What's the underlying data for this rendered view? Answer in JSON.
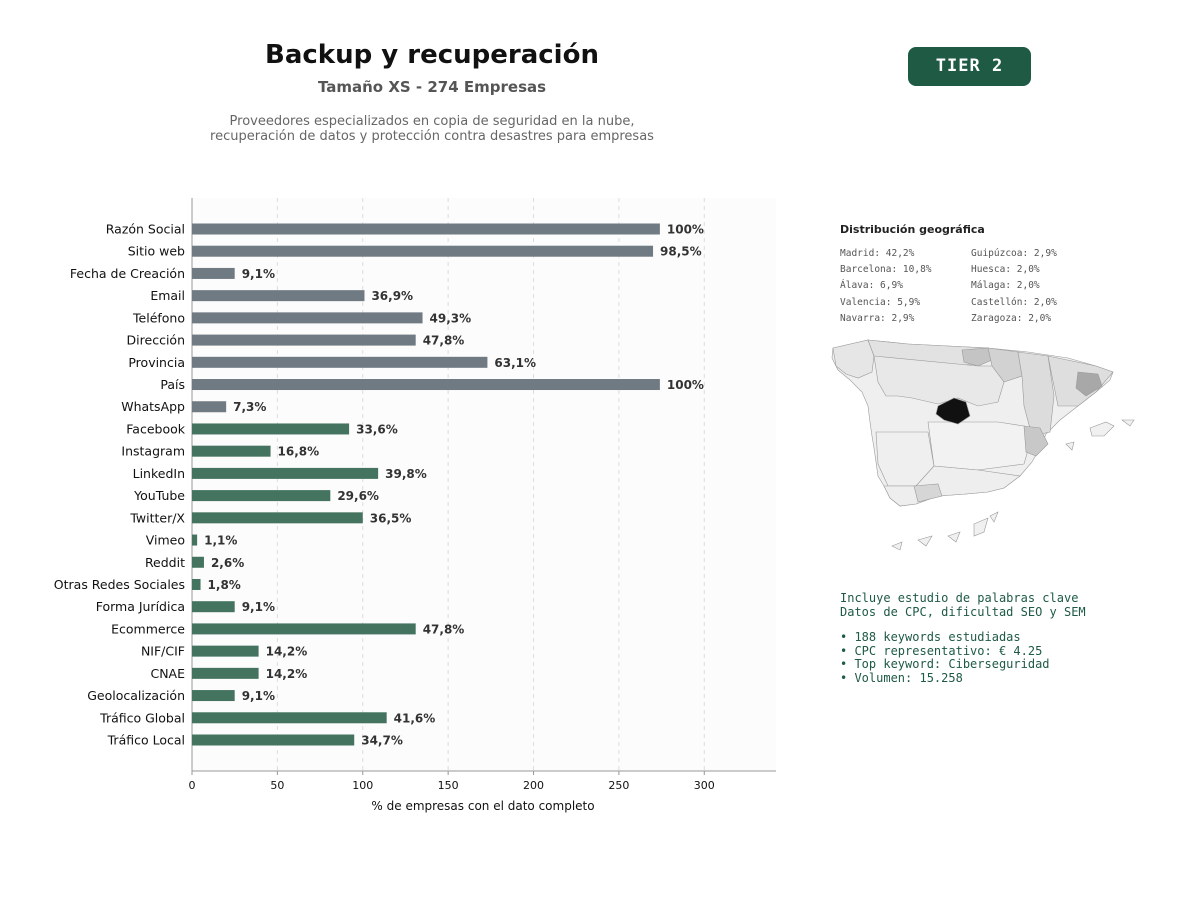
{
  "header": {
    "title": "Backup y recuperación",
    "subtitle": "Tamaño XS - 274 Empresas",
    "description_line1": "Proveedores especializados en copia de seguridad en la nube,",
    "description_line2": "recuperación de datos y protección contra desastres para empresas",
    "tier": "TIER 2"
  },
  "colors": {
    "gray_bar": "#707a82",
    "green_bar": "#44735f",
    "accent": "#1e5a44"
  },
  "chart_data": {
    "type": "bar",
    "orientation": "horizontal",
    "categories": [
      "Razón Social",
      "Sitio web",
      "Fecha de Creación",
      "Email",
      "Teléfono",
      "Dirección",
      "Provincia",
      "País",
      "WhatsApp",
      "Facebook",
      "Instagram",
      "LinkedIn",
      "YouTube",
      "Twitter/X",
      "Vimeo",
      "Reddit",
      "Otras Redes Sociales",
      "Forma Jurídica",
      "Ecommerce",
      "NIF/CIF",
      "CNAE",
      "Geolocalización",
      "Tráfico Global",
      "Tráfico Local"
    ],
    "values": [
      274,
      270,
      25,
      101,
      135,
      131,
      173,
      274,
      20,
      92,
      46,
      109,
      81,
      100,
      3,
      7,
      5,
      25,
      131,
      39,
      39,
      25,
      114,
      95
    ],
    "labels": [
      "100%",
      "98,5%",
      "9,1%",
      "36,9%",
      "49,3%",
      "47,8%",
      "63,1%",
      "100%",
      "7,3%",
      "33,6%",
      "16,8%",
      "39,8%",
      "29,6%",
      "36,5%",
      "1,1%",
      "2,6%",
      "1,8%",
      "9,1%",
      "47,8%",
      "14,2%",
      "14,2%",
      "9,1%",
      "41,6%",
      "34,7%"
    ],
    "groups": [
      "gray",
      "gray",
      "gray",
      "gray",
      "gray",
      "gray",
      "gray",
      "gray",
      "gray",
      "green",
      "green",
      "green",
      "green",
      "green",
      "green",
      "green",
      "green",
      "green",
      "green",
      "green",
      "green",
      "green",
      "green",
      "green"
    ],
    "xlabel": "% de empresas con el dato completo",
    "xlim": [
      0,
      342
    ],
    "xticks": [
      0,
      50,
      100,
      150,
      200,
      250,
      300
    ],
    "grid": "vertical dashed"
  },
  "geo": {
    "title": "Distribución geográfica",
    "col1": [
      "Madrid: 42,2%",
      "Barcelona: 10,8%",
      "Álava: 6,9%",
      "Valencia: 5,9%",
      "Navarra: 2,9%"
    ],
    "col2": [
      "Guipúzcoa: 2,9%",
      "Huesca: 2,0%",
      "Málaga: 2,0%",
      "Castellón: 2,0%",
      "Zaragoza: 2,0%"
    ]
  },
  "keywords": {
    "line1": "Incluye estudio de palabras clave",
    "line2": "Datos de CPC, dificultad SEO y SEM",
    "bullets": [
      "• 188 keywords estudiadas",
      "• CPC representativo: € 4.25",
      "• Top keyword: Ciberseguridad",
      "• Volumen: 15.258"
    ]
  }
}
